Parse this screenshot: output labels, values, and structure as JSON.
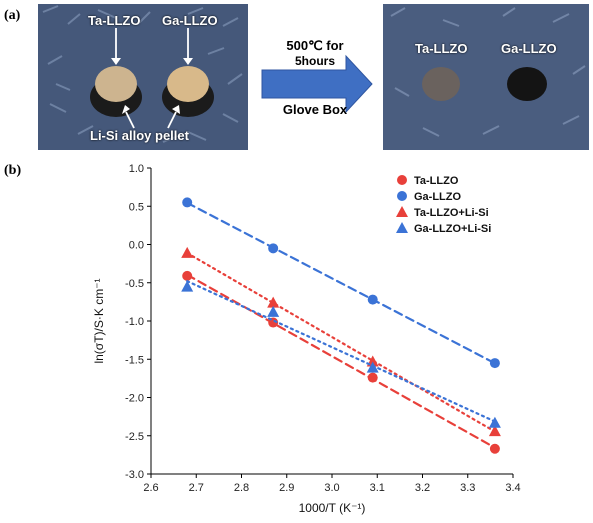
{
  "panel_a": {
    "label": "(a)",
    "left_photo": {
      "label_ta": "Ta-LLZO",
      "label_ga": "Ga-LLZO",
      "caption": "Li-Si alloy pellet"
    },
    "process": {
      "line1": "500℃ for",
      "line2": "5hours",
      "line3": "Glove Box"
    },
    "right_photo": {
      "label_ta": "Ta-LLZO",
      "label_ga": "Ga-LLZO"
    },
    "colors": {
      "cloth": "#45587a",
      "ta_pellet": "#cdb48f",
      "ga_pellet": "#d8b98a",
      "ta_after": "#6a625e",
      "ga_after": "#141414",
      "arrow": "#3f6fc3"
    }
  },
  "panel_b": {
    "label": "(b)"
  },
  "chart_data": {
    "type": "scatter",
    "xlabel": "1000/T (K⁻¹)",
    "ylabel": "ln(σT)/S·K cm⁻¹",
    "xlim": [
      2.6,
      3.4
    ],
    "ylim": [
      -3.0,
      1.0
    ],
    "xticks": [
      "2.6",
      "2.7",
      "2.8",
      "2.9",
      "3.0",
      "3.1",
      "3.2",
      "3.3",
      "3.4"
    ],
    "yticks": [
      "1.0",
      "0.5",
      "0.0",
      "-0.5",
      "-1.0",
      "-1.5",
      "-2.0",
      "-2.5",
      "-3.0"
    ],
    "grid": false,
    "legend_position": "top-right",
    "series": [
      {
        "name": "Ta-LLZO",
        "marker": "circle",
        "color": "#e8403a",
        "line": "dashed",
        "x": [
          2.68,
          2.87,
          3.09,
          3.36
        ],
        "y": [
          -0.41,
          -1.02,
          -1.74,
          -2.67
        ]
      },
      {
        "name": "Ga-LLZO",
        "marker": "circle",
        "color": "#3b73d6",
        "line": "dashed",
        "x": [
          2.68,
          2.87,
          3.09,
          3.36
        ],
        "y": [
          0.55,
          -0.05,
          -0.72,
          -1.55
        ]
      },
      {
        "name": "Ta-LLZO+Li-Si",
        "marker": "triangle",
        "color": "#e8403a",
        "line": "dotted",
        "x": [
          2.68,
          2.87,
          3.09,
          3.36
        ],
        "y": [
          -0.11,
          -0.76,
          -1.53,
          -2.44
        ]
      },
      {
        "name": "Ga-LLZO+Li-Si",
        "marker": "triangle",
        "color": "#3b73d6",
        "line": "dotted",
        "x": [
          2.68,
          2.87,
          3.09,
          3.36
        ],
        "y": [
          -0.55,
          -0.88,
          -1.61,
          -2.33
        ]
      }
    ]
  }
}
